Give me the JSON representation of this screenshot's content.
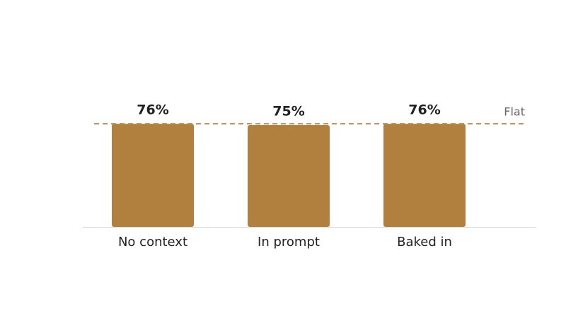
{
  "chart_data": {
    "type": "bar",
    "categories": [
      "No context",
      "In prompt",
      "Baked in"
    ],
    "values": [
      76,
      75,
      76
    ],
    "value_labels": [
      "76%",
      "75%",
      "76%"
    ],
    "color": "#b1803e",
    "ylim": [
      0,
      100
    ],
    "reference_line": {
      "value": 76,
      "label": "Flat",
      "color": "#c08a4a"
    }
  }
}
